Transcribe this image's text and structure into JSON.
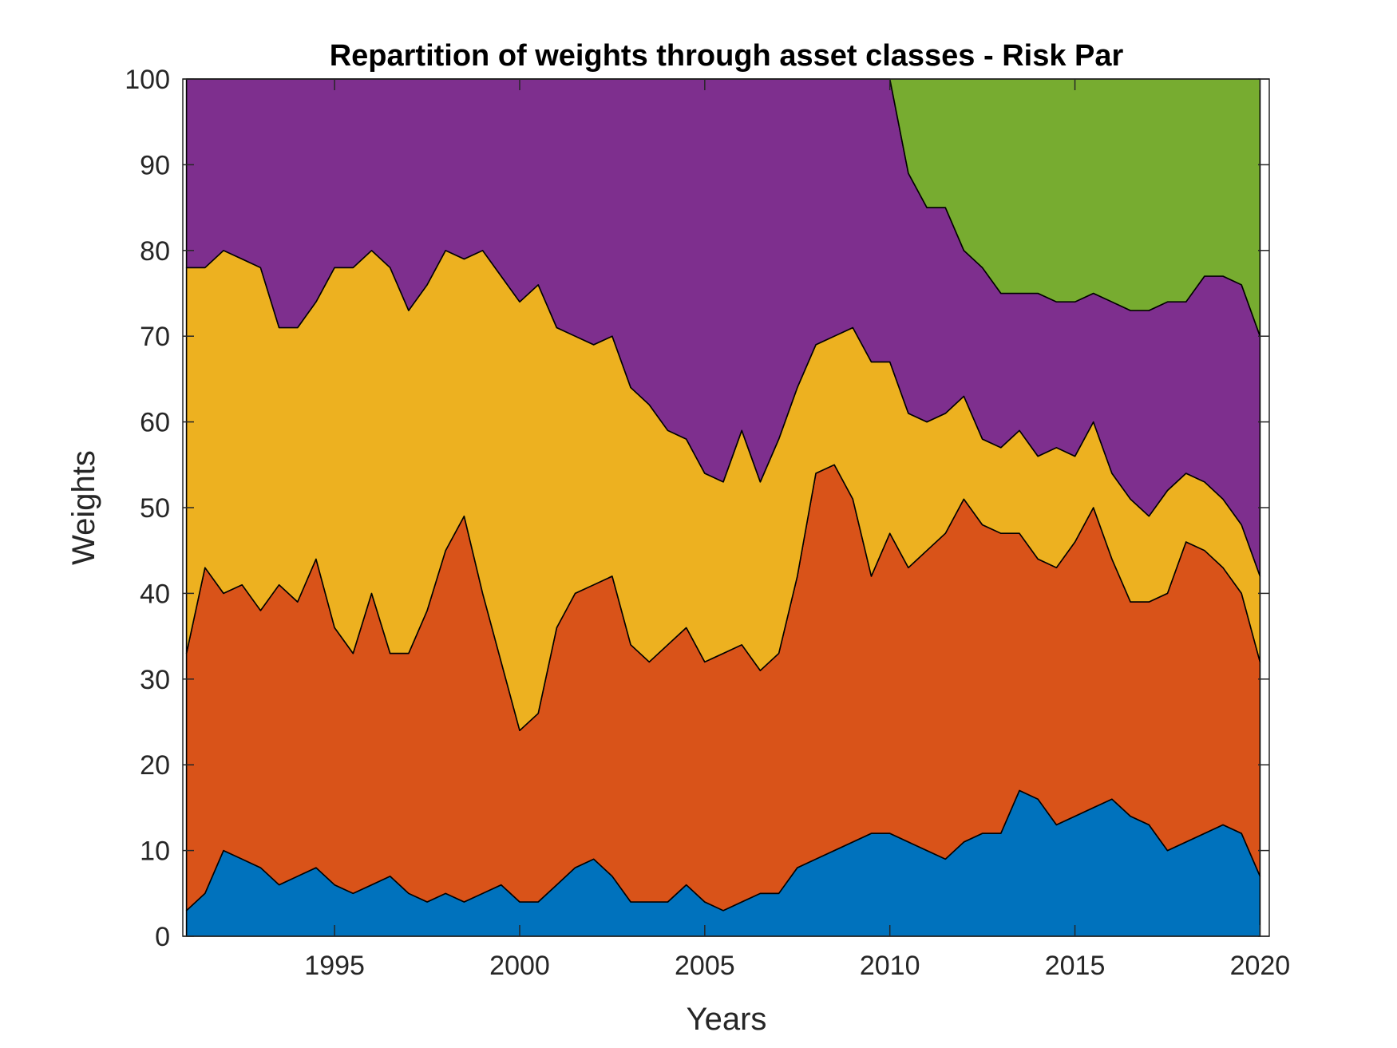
{
  "chart_data": {
    "type": "area",
    "stacked": true,
    "title": "Repartition of weights through asset classes - Risk Par",
    "xlabel": "Years",
    "ylabel": "Weights",
    "xlim": [
      1990.9,
      2020.25
    ],
    "ylim": [
      0,
      100
    ],
    "xticks": [
      1995,
      2000,
      2005,
      2010,
      2015,
      2020
    ],
    "yticks": [
      0,
      10,
      20,
      30,
      40,
      50,
      60,
      70,
      80,
      90,
      100
    ],
    "grid": false,
    "legend": "none",
    "x": [
      1991.0,
      1991.5,
      1992.0,
      1992.5,
      1993.0,
      1993.5,
      1994.0,
      1994.5,
      1995.0,
      1995.5,
      1996.0,
      1996.5,
      1997.0,
      1997.5,
      1998.0,
      1998.5,
      1999.0,
      1999.5,
      2000.0,
      2000.5,
      2001.0,
      2001.5,
      2002.0,
      2002.5,
      2003.0,
      2003.5,
      2004.0,
      2004.5,
      2005.0,
      2005.5,
      2006.0,
      2006.5,
      2007.0,
      2007.5,
      2008.0,
      2008.5,
      2009.0,
      2009.5,
      2010.0,
      2010.5,
      2011.0,
      2011.5,
      2012.0,
      2012.5,
      2013.0,
      2013.5,
      2014.0,
      2014.5,
      2015.0,
      2015.5,
      2016.0,
      2016.5,
      2017.0,
      2017.5,
      2018.0,
      2018.5,
      2019.0,
      2019.5,
      2020.0
    ],
    "series": [
      {
        "color": "#0072BD",
        "values": [
          3,
          5,
          10,
          9,
          8,
          6,
          7,
          8,
          6,
          5,
          6,
          7,
          5,
          4,
          5,
          4,
          5,
          6,
          4,
          4,
          6,
          8,
          9,
          7,
          4,
          4,
          4,
          6,
          4,
          3,
          4,
          5,
          5,
          8,
          9,
          10,
          11,
          12,
          12,
          11,
          10,
          9,
          11,
          12,
          12,
          17,
          16,
          13,
          14,
          15,
          16,
          14,
          13,
          10,
          11,
          12,
          13,
          12,
          7
        ]
      },
      {
        "color": "#D95319",
        "values": [
          30,
          38,
          30,
          32,
          30,
          35,
          32,
          36,
          30,
          28,
          34,
          26,
          28,
          34,
          40,
          45,
          35,
          26,
          20,
          22,
          30,
          32,
          32,
          35,
          30,
          28,
          30,
          30,
          28,
          30,
          30,
          26,
          28,
          34,
          45,
          45,
          40,
          30,
          35,
          32,
          35,
          38,
          40,
          36,
          35,
          30,
          28,
          30,
          32,
          35,
          28,
          25,
          26,
          30,
          35,
          33,
          30,
          28,
          25
        ]
      },
      {
        "color": "#EDB120",
        "values": [
          45,
          35,
          40,
          38,
          40,
          30,
          32,
          30,
          42,
          45,
          40,
          45,
          40,
          38,
          35,
          30,
          40,
          45,
          50,
          50,
          35,
          30,
          28,
          28,
          30,
          30,
          25,
          22,
          22,
          20,
          25,
          22,
          25,
          22,
          15,
          15,
          20,
          25,
          20,
          18,
          15,
          14,
          12,
          10,
          10,
          12,
          12,
          14,
          10,
          10,
          10,
          12,
          10,
          12,
          8,
          8,
          8,
          8,
          10
        ]
      },
      {
        "color": "#7E2F8E",
        "values": [
          22,
          22,
          20,
          21,
          22,
          29,
          29,
          26,
          22,
          22,
          20,
          22,
          27,
          24,
          20,
          21,
          20,
          23,
          26,
          24,
          29,
          30,
          31,
          30,
          36,
          38,
          41,
          42,
          46,
          47,
          41,
          47,
          42,
          36,
          31,
          30,
          29,
          33,
          33,
          28,
          25,
          24,
          17,
          20,
          18,
          16,
          19,
          17,
          18,
          15,
          20,
          22,
          24,
          22,
          20,
          24,
          26,
          28,
          28
        ]
      },
      {
        "color": "#77AC30",
        "values": [
          0,
          0,
          0,
          0,
          0,
          0,
          0,
          0,
          0,
          0,
          0,
          0,
          0,
          0,
          0,
          0,
          0,
          0,
          0,
          0,
          0,
          0,
          0,
          0,
          0,
          0,
          0,
          0,
          0,
          0,
          0,
          0,
          0,
          0,
          0,
          0,
          0,
          0,
          0,
          11,
          15,
          15,
          20,
          22,
          25,
          25,
          25,
          26,
          26,
          25,
          26,
          27,
          27,
          26,
          26,
          23,
          23,
          24,
          30
        ]
      }
    ]
  }
}
